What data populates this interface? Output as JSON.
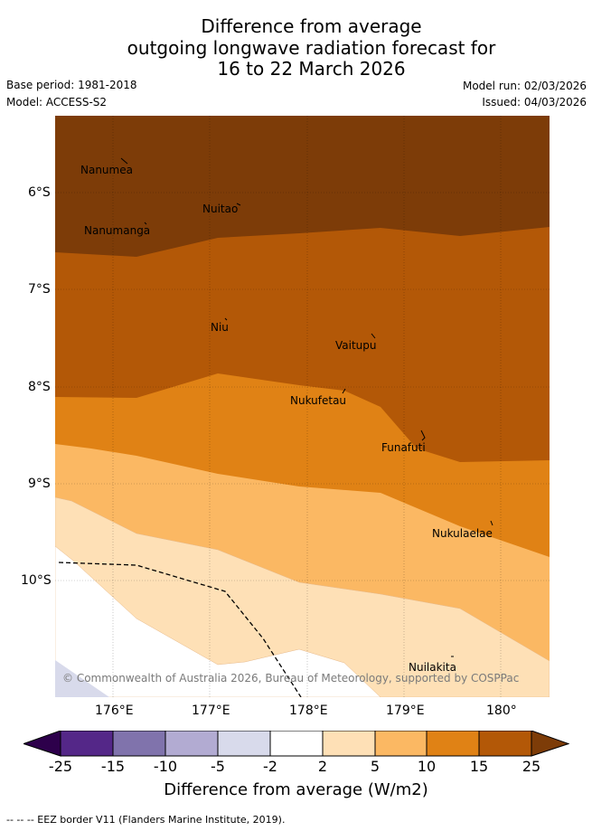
{
  "header": {
    "title_line1": "Difference from average",
    "title_line2": "outgoing longwave radiation forecast for",
    "title_line3": "16 to 22 March 2026",
    "base_period": "Base period: 1981-2018",
    "model": "Model: ACCESS-S2",
    "model_run": "Model run: 02/03/2026",
    "issued": "Issued: 04/03/2026"
  },
  "map": {
    "lon_labels": [
      "176°E",
      "177°E",
      "178°E",
      "179°E",
      "180°"
    ],
    "lat_labels": [
      "6°S",
      "7°S",
      "8°S",
      "9°S",
      "10°S"
    ],
    "islands": [
      "Nanumea",
      "Nuitao",
      "Nanumanga",
      "Niu",
      "Vaitupu",
      "Nukufetau",
      "Funafuti",
      "Nukulaelae",
      "Nuilakita"
    ],
    "copyright": "© Commonwealth of Australia 2026, Bureau of Meteorology, supported by COSPPac",
    "colors": {
      "c_gt25": "#7d3c08",
      "c_15_25": "#b35807",
      "c_10_15": "#e08215",
      "c_5_10": "#fbb863",
      "c_2_5": "#fee0b6",
      "c_neutral": "#ffffff",
      "c_m5_m2": "#d8daeb",
      "c_m10_m5": "#b2abd2",
      "c_m15_m10": "#8073ac",
      "c_m25_m15": "#542788",
      "c_lt_m25": "#2d004b"
    }
  },
  "colorbar": {
    "ticks": [
      "-25",
      "-15",
      "-10",
      "-5",
      "-2",
      "2",
      "5",
      "10",
      "15",
      "25"
    ],
    "label": "Difference from average (W/m2)"
  },
  "footer": {
    "eez_legend": "-- -- -- EEZ border V11 (Flanders Marine Institute, 2019)."
  }
}
